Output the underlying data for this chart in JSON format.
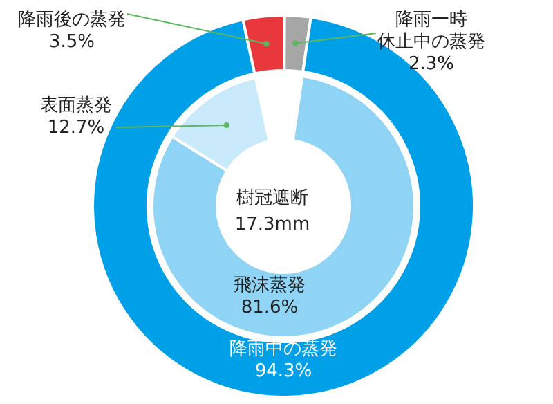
{
  "chart_data": [
    {
      "type": "donut",
      "categories": [
        "降雨一時休止中の蒸発",
        "降雨中の蒸発",
        "降雨後の蒸発"
      ],
      "values": [
        2.3,
        94.3,
        3.5
      ],
      "colors": [
        "#a6a6a6",
        "#00a0e9",
        "#e8383d"
      ],
      "value_labels": [
        "2.3%",
        "94.3%",
        "3.5%"
      ]
    },
    {
      "type": "donut",
      "title": "樹冠遮断",
      "subtitle": "17.3mm",
      "categories": [
        "飛沫蒸発",
        "表面蒸発"
      ],
      "values": [
        81.6,
        12.7
      ],
      "colors": [
        "#8fd3f5",
        "#c8eafa"
      ],
      "value_labels": [
        "81.6%",
        "12.7%"
      ]
    }
  ]
}
